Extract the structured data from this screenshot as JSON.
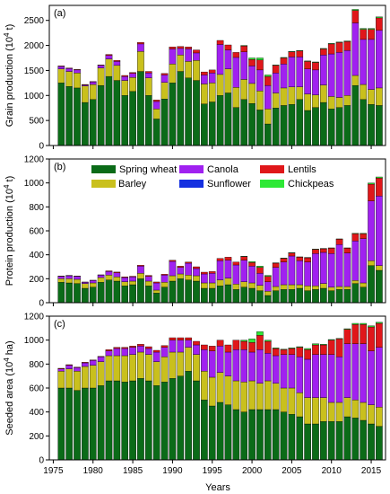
{
  "chart_data": [
    {
      "panel_label": "(a)",
      "type": "bar",
      "stacked": true,
      "ylabel_main": "Grain production (10",
      "ylabel_sup": "4",
      "ylabel_tail": " t)",
      "ylim": [
        0,
        2800
      ],
      "yticks": [
        0,
        500,
        1000,
        1500,
        2000,
        2500
      ],
      "x": [
        1976,
        1977,
        1978,
        1979,
        1980,
        1981,
        1982,
        1983,
        1984,
        1985,
        1986,
        1987,
        1988,
        1989,
        1990,
        1991,
        1992,
        1993,
        1994,
        1995,
        1996,
        1997,
        1998,
        1999,
        2000,
        2001,
        2002,
        2003,
        2004,
        2005,
        2006,
        2007,
        2008,
        2009,
        2010,
        2011,
        2012,
        2013,
        2014,
        2015,
        2016
      ],
      "series": [
        {
          "name": "Spring wheat",
          "color": "#0b6b18",
          "values": [
            1250,
            1180,
            1150,
            860,
            920,
            1200,
            1380,
            1300,
            1000,
            1080,
            1480,
            1000,
            530,
            930,
            1250,
            1480,
            1350,
            1300,
            830,
            870,
            1000,
            1050,
            760,
            920,
            840,
            710,
            430,
            750,
            800,
            820,
            920,
            700,
            760,
            860,
            730,
            760,
            800,
            1200,
            920,
            820,
            800
          ]
        },
        {
          "name": "Barley",
          "color": "#c9c01d",
          "values": [
            280,
            300,
            300,
            330,
            300,
            350,
            350,
            300,
            300,
            280,
            400,
            350,
            200,
            330,
            380,
            330,
            330,
            400,
            400,
            380,
            420,
            480,
            400,
            400,
            400,
            380,
            300,
            300,
            350,
            350,
            250,
            330,
            250,
            350,
            250,
            200,
            200,
            200,
            300,
            300,
            350
          ]
        },
        {
          "name": "Canola",
          "color": "#a021f0",
          "values": [
            50,
            60,
            60,
            20,
            50,
            50,
            70,
            80,
            80,
            80,
            150,
            100,
            150,
            150,
            300,
            130,
            250,
            150,
            180,
            200,
            600,
            380,
            600,
            550,
            350,
            420,
            470,
            400,
            480,
            600,
            600,
            500,
            500,
            600,
            850,
            900,
            900,
            1050,
            900,
            1000,
            1150
          ]
        },
        {
          "name": "Sunflower",
          "color": "#1530e0",
          "values": [
            0,
            0,
            0,
            0,
            0,
            0,
            0,
            0,
            0,
            0,
            0,
            0,
            0,
            0,
            0,
            0,
            0,
            0,
            0,
            0,
            0,
            0,
            0,
            0,
            0,
            0,
            0,
            0,
            0,
            0,
            0,
            0,
            0,
            0,
            0,
            0,
            0,
            0,
            0,
            0,
            0
          ]
        },
        {
          "name": "Lentils",
          "color": "#e0171a",
          "values": [
            10,
            10,
            10,
            10,
            10,
            10,
            20,
            20,
            20,
            20,
            30,
            30,
            30,
            30,
            40,
            40,
            40,
            60,
            60,
            60,
            80,
            100,
            100,
            120,
            130,
            200,
            180,
            150,
            120,
            100,
            120,
            150,
            150,
            120,
            200,
            200,
            180,
            250,
            200,
            200,
            250
          ]
        },
        {
          "name": "Chickpeas",
          "color": "#2ee836",
          "values": [
            0,
            0,
            0,
            0,
            0,
            0,
            0,
            0,
            0,
            0,
            0,
            0,
            0,
            0,
            0,
            0,
            0,
            0,
            0,
            0,
            0,
            0,
            0,
            10,
            30,
            40,
            30,
            10,
            10,
            10,
            10,
            10,
            10,
            10,
            10,
            10,
            10,
            20,
            20,
            20,
            20
          ]
        }
      ]
    },
    {
      "panel_label": "(b)",
      "type": "bar",
      "stacked": true,
      "ylabel_main": "Protein production (10",
      "ylabel_sup": "4",
      "ylabel_tail": " t)",
      "ylim": [
        0,
        1200
      ],
      "yticks": [
        0,
        200,
        400,
        600,
        800,
        1000,
        1200
      ],
      "x": [
        1976,
        1977,
        1978,
        1979,
        1980,
        1981,
        1982,
        1983,
        1984,
        1985,
        1986,
        1987,
        1988,
        1989,
        1990,
        1991,
        1992,
        1993,
        1994,
        1995,
        1996,
        1997,
        1998,
        1999,
        2000,
        2001,
        2002,
        2003,
        2004,
        2005,
        2006,
        2007,
        2008,
        2009,
        2010,
        2011,
        2012,
        2013,
        2014,
        2015,
        2016
      ],
      "series": [
        {
          "name": "Spring wheat",
          "color": "#0b6b18",
          "values": [
            170,
            165,
            160,
            120,
            130,
            170,
            190,
            180,
            140,
            150,
            200,
            140,
            80,
            130,
            180,
            200,
            190,
            180,
            120,
            120,
            140,
            150,
            110,
            130,
            120,
            100,
            60,
            100,
            110,
            110,
            120,
            100,
            110,
            120,
            100,
            110,
            110,
            160,
            130,
            310,
            270
          ]
        },
        {
          "name": "Barley",
          "color": "#c9c01d",
          "values": [
            30,
            35,
            35,
            40,
            35,
            40,
            40,
            35,
            35,
            30,
            45,
            40,
            25,
            40,
            45,
            40,
            40,
            45,
            45,
            45,
            50,
            55,
            45,
            45,
            45,
            45,
            35,
            35,
            40,
            40,
            30,
            40,
            30,
            40,
            30,
            25,
            25,
            25,
            35,
            40,
            40
          ]
        },
        {
          "name": "Canola",
          "color": "#a021f0",
          "values": [
            20,
            25,
            25,
            10,
            20,
            20,
            30,
            35,
            35,
            35,
            60,
            40,
            60,
            60,
            120,
            55,
            100,
            60,
            75,
            80,
            160,
            150,
            160,
            180,
            140,
            100,
            80,
            160,
            190,
            240,
            200,
            200,
            270,
            260,
            280,
            350,
            280,
            330,
            370,
            500,
            580
          ]
        },
        {
          "name": "Sunflower",
          "color": "#1530e0",
          "values": [
            0,
            0,
            0,
            0,
            0,
            0,
            0,
            0,
            0,
            0,
            0,
            0,
            0,
            0,
            0,
            0,
            0,
            0,
            0,
            0,
            0,
            0,
            0,
            0,
            0,
            0,
            0,
            0,
            0,
            0,
            0,
            0,
            0,
            0,
            0,
            0,
            0,
            0,
            0,
            0,
            0
          ]
        },
        {
          "name": "Lentils",
          "color": "#e0171a",
          "values": [
            3,
            3,
            3,
            3,
            3,
            3,
            6,
            6,
            6,
            6,
            8,
            8,
            8,
            8,
            10,
            10,
            10,
            15,
            15,
            15,
            20,
            25,
            25,
            30,
            30,
            50,
            45,
            35,
            30,
            25,
            30,
            35,
            35,
            30,
            45,
            45,
            40,
            60,
            40,
            140,
            150
          ]
        },
        {
          "name": "Chickpeas",
          "color": "#2ee836",
          "values": [
            0,
            0,
            0,
            0,
            0,
            0,
            0,
            0,
            0,
            0,
            0,
            0,
            0,
            0,
            0,
            0,
            0,
            0,
            0,
            0,
            0,
            0,
            0,
            3,
            8,
            10,
            8,
            3,
            3,
            3,
            3,
            3,
            3,
            3,
            3,
            3,
            3,
            5,
            5,
            10,
            10
          ]
        }
      ]
    },
    {
      "panel_label": "(c)",
      "type": "bar",
      "stacked": true,
      "ylabel_main": "Seeded area  (10",
      "ylabel_sup": "4",
      "ylabel_tail": " ha)",
      "xlabel": "Years",
      "ylim": [
        0,
        1200
      ],
      "yticks": [
        0,
        200,
        400,
        600,
        800,
        1000,
        1200
      ],
      "x": [
        1976,
        1977,
        1978,
        1979,
        1980,
        1981,
        1982,
        1983,
        1984,
        1985,
        1986,
        1987,
        1988,
        1989,
        1990,
        1991,
        1992,
        1993,
        1994,
        1995,
        1996,
        1997,
        1998,
        1999,
        2000,
        2001,
        2002,
        2003,
        2004,
        2005,
        2006,
        2007,
        2008,
        2009,
        2010,
        2011,
        2012,
        2013,
        2014,
        2015,
        2016
      ],
      "xticks": [
        1975,
        1980,
        1985,
        1990,
        1995,
        2000,
        2005,
        2010,
        2015
      ],
      "series": [
        {
          "name": "Spring wheat",
          "color": "#0b6b18",
          "values": [
            600,
            600,
            580,
            600,
            600,
            620,
            660,
            660,
            650,
            660,
            680,
            660,
            620,
            650,
            680,
            700,
            740,
            660,
            500,
            450,
            480,
            460,
            420,
            400,
            420,
            420,
            420,
            420,
            400,
            380,
            360,
            300,
            300,
            320,
            320,
            320,
            360,
            350,
            330,
            300,
            280
          ]
        },
        {
          "name": "Barley",
          "color": "#c9c01d",
          "values": [
            140,
            160,
            160,
            180,
            190,
            200,
            210,
            210,
            220,
            220,
            220,
            220,
            200,
            210,
            220,
            200,
            200,
            220,
            240,
            240,
            250,
            240,
            240,
            250,
            240,
            220,
            240,
            220,
            200,
            220,
            200,
            220,
            220,
            200,
            160,
            160,
            160,
            150,
            150,
            160,
            160
          ]
        },
        {
          "name": "Canola",
          "color": "#a021f0",
          "values": [
            20,
            30,
            30,
            30,
            40,
            40,
            40,
            60,
            60,
            60,
            50,
            50,
            80,
            80,
            100,
            100,
            60,
            80,
            180,
            220,
            220,
            200,
            260,
            270,
            240,
            280,
            230,
            230,
            280,
            280,
            300,
            320,
            360,
            360,
            400,
            380,
            450,
            470,
            490,
            450,
            500
          ]
        },
        {
          "name": "Sunflower",
          "color": "#1530e0",
          "values": [
            0,
            0,
            0,
            0,
            0,
            0,
            0,
            0,
            0,
            0,
            0,
            0,
            0,
            0,
            0,
            0,
            0,
            0,
            0,
            0,
            0,
            0,
            0,
            0,
            0,
            0,
            0,
            0,
            0,
            0,
            0,
            0,
            0,
            0,
            0,
            0,
            0,
            0,
            0,
            0,
            0
          ]
        },
        {
          "name": "Lentils",
          "color": "#e0171a",
          "values": [
            5,
            5,
            5,
            5,
            5,
            5,
            10,
            10,
            10,
            10,
            15,
            15,
            15,
            15,
            20,
            20,
            20,
            30,
            40,
            40,
            50,
            60,
            80,
            70,
            80,
            120,
            100,
            60,
            40,
            50,
            80,
            80,
            80,
            80,
            120,
            150,
            120,
            160,
            160,
            200,
            200
          ]
        },
        {
          "name": "Chickpeas",
          "color": "#2ee836",
          "values": [
            0,
            0,
            0,
            0,
            0,
            0,
            0,
            0,
            0,
            0,
            0,
            0,
            0,
            0,
            0,
            0,
            0,
            0,
            0,
            0,
            0,
            0,
            0,
            10,
            30,
            30,
            10,
            5,
            5,
            5,
            5,
            10,
            10,
            5,
            5,
            5,
            5,
            10,
            10,
            10,
            10
          ]
        }
      ]
    }
  ],
  "legend": [
    {
      "label": "Spring wheat",
      "color": "#0b6b18"
    },
    {
      "label": "Barley",
      "color": "#c9c01d"
    },
    {
      "label": "Canola",
      "color": "#a021f0"
    },
    {
      "label": "Sunflower",
      "color": "#1530e0"
    },
    {
      "label": "Lentils",
      "color": "#e0171a"
    },
    {
      "label": "Chickpeas",
      "color": "#2ee836"
    }
  ]
}
